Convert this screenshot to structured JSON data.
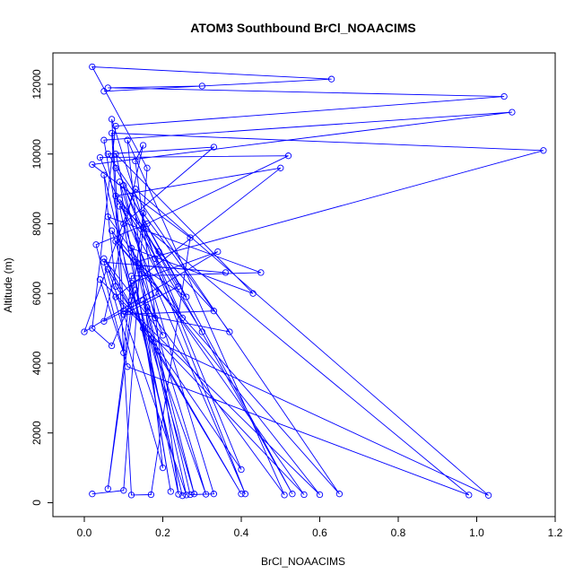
{
  "chart_data": {
    "type": "line",
    "title": "ATOM3 Southbound BrCl_NOAACIMS",
    "xlabel": "BrCl_NOAACIMS",
    "ylabel": "Altitude (m)",
    "xlim": [
      -0.08,
      1.2
    ],
    "ylim": [
      -400,
      12900
    ],
    "x_ticks": [
      0.0,
      0.2,
      0.4,
      0.6,
      0.8,
      1.0,
      1.2
    ],
    "y_ticks": [
      0,
      2000,
      4000,
      6000,
      8000,
      10000,
      12000
    ],
    "x_tick_labels": [
      "0.0",
      "0.2",
      "0.4",
      "0.6",
      "0.8",
      "1.0",
      "1.2"
    ],
    "y_tick_labels": [
      "0",
      "2000",
      "4000",
      "6000",
      "8000",
      "10000",
      "12000"
    ],
    "grid": false,
    "series": [
      {
        "color": "#0000ff",
        "marker": "open-circle",
        "points": [
          [
            0.02,
            250
          ],
          [
            0.1,
            350
          ],
          [
            0.16,
            9600
          ],
          [
            0.02,
            12500
          ],
          [
            0.63,
            12150
          ],
          [
            0.05,
            11800
          ],
          [
            0.3,
            11950
          ],
          [
            0.06,
            11900
          ],
          [
            1.07,
            11650
          ],
          [
            0.08,
            10800
          ],
          [
            0.02,
            5000
          ],
          [
            0.07,
            4500
          ],
          [
            0.12,
            5800
          ],
          [
            0.05,
            10400
          ],
          [
            1.09,
            11200
          ],
          [
            0.02,
            9700
          ],
          [
            0.27,
            7600
          ],
          [
            0.17,
            230
          ],
          [
            0.12,
            220
          ],
          [
            0.07,
            10600
          ],
          [
            1.17,
            10100
          ],
          [
            0.13,
            6900
          ],
          [
            0.27,
            230
          ],
          [
            0.33,
            250
          ],
          [
            0.09,
            9200
          ],
          [
            0.22,
            320
          ],
          [
            0.15,
            5000
          ],
          [
            0.07,
            7800
          ],
          [
            0.6,
            230
          ],
          [
            0.04,
            6400
          ],
          [
            0.1,
            4300
          ],
          [
            0.12,
            6500
          ],
          [
            0.45,
            6600
          ],
          [
            0.06,
            8200
          ],
          [
            0.56,
            230
          ],
          [
            0.08,
            5900
          ],
          [
            0.5,
            9600
          ],
          [
            0.08,
            8800
          ],
          [
            0.25,
            5300
          ],
          [
            0.1,
            9100
          ],
          [
            0.41,
            250
          ],
          [
            0.04,
            9900
          ],
          [
            0.52,
            9950
          ],
          [
            0.16,
            8000
          ],
          [
            0.03,
            7400
          ],
          [
            0.11,
            3900
          ],
          [
            0.98,
            220
          ],
          [
            0.09,
            8500
          ],
          [
            0.24,
            240
          ],
          [
            0.13,
            9800
          ],
          [
            0.15,
            10250
          ],
          [
            0.05,
            5200
          ],
          [
            0.19,
            6000
          ],
          [
            0.08,
            7500
          ],
          [
            0.65,
            250
          ],
          [
            0.06,
            10000
          ],
          [
            0.33,
            10200
          ],
          [
            0.1,
            8000
          ],
          [
            0.2,
            4800
          ],
          [
            0.05,
            7000
          ],
          [
            0.4,
            250
          ],
          [
            0.06,
            6700
          ],
          [
            0.26,
            220
          ],
          [
            0.15,
            5800
          ],
          [
            0.18,
            5300
          ],
          [
            0.08,
            10000
          ],
          [
            0.43,
            6000
          ],
          [
            0.12,
            7300
          ],
          [
            0.31,
            240
          ],
          [
            0.17,
            4700
          ],
          [
            1.03,
            210
          ],
          [
            0.13,
            9000
          ],
          [
            0.0,
            4900
          ],
          [
            0.34,
            7200
          ],
          [
            0.12,
            6300
          ],
          [
            0.25,
            200
          ],
          [
            0.05,
            9400
          ],
          [
            0.08,
            6200
          ],
          [
            0.4,
            950
          ],
          [
            0.18,
            7000
          ],
          [
            0.07,
            11000
          ],
          [
            0.1,
            5500
          ],
          [
            0.37,
            4900
          ],
          [
            0.15,
            8300
          ],
          [
            0.06,
            400
          ],
          [
            0.13,
            6100
          ],
          [
            0.28,
            250
          ],
          [
            0.16,
            5600
          ],
          [
            0.51,
            220
          ],
          [
            0.11,
            10400
          ],
          [
            0.2,
            1000
          ],
          [
            0.05,
            6900
          ],
          [
            0.36,
            6600
          ],
          [
            0.14,
            6800
          ],
          [
            0.26,
            5900
          ],
          [
            0.08,
            9600
          ],
          [
            0.53,
            250
          ],
          [
            0.15,
            7900
          ],
          [
            0.24,
            6200
          ],
          [
            0.1,
            5400
          ],
          [
            0.33,
            5500
          ],
          [
            0.19,
            7200
          ],
          [
            0.09,
            8700
          ],
          [
            0.3,
            4900
          ]
        ]
      }
    ]
  }
}
